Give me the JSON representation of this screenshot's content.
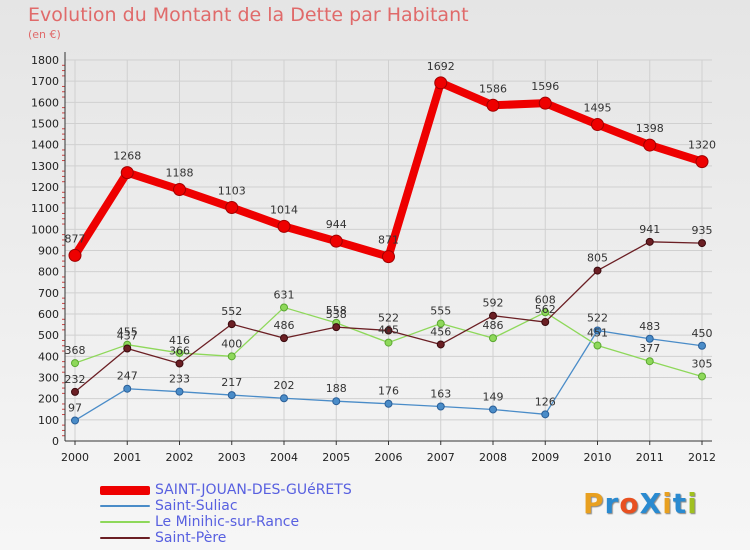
{
  "chart_data": {
    "type": "line",
    "title": "Evolution du Montant de la Dette par Habitant",
    "subtitle": "(en €)",
    "x": [
      "2000",
      "2001",
      "2002",
      "2003",
      "2004",
      "2005",
      "2006",
      "2007",
      "2008",
      "2009",
      "2010",
      "2011",
      "2012"
    ],
    "ylim": [
      0,
      1800
    ],
    "yticks": [
      0,
      100,
      200,
      300,
      400,
      500,
      600,
      700,
      800,
      900,
      1000,
      1100,
      1200,
      1300,
      1400,
      1500,
      1600,
      1700,
      1800
    ],
    "grid": true,
    "legend_position": "bottom-left",
    "series": [
      {
        "name": "SAINT-JOUAN-DES-GUéRETS",
        "color": "#ee0000",
        "values": [
          877,
          1268,
          1188,
          1103,
          1014,
          944,
          871,
          1692,
          1586,
          1596,
          1495,
          1398,
          1320
        ]
      },
      {
        "name": "Saint-Suliac",
        "color": "#4a8cc8",
        "values": [
          97,
          247,
          233,
          217,
          202,
          188,
          176,
          163,
          149,
          126,
          522,
          483,
          450
        ]
      },
      {
        "name": "Le Minihic-sur-Rance",
        "color": "#8ed85a",
        "values": [
          368,
          455,
          416,
          400,
          631,
          558,
          465,
          555,
          486,
          608,
          451,
          377,
          305
        ]
      },
      {
        "name": "Saint-Père",
        "color": "#6b1f24",
        "values": [
          232,
          437,
          366,
          552,
          486,
          538,
          522,
          456,
          592,
          562,
          805,
          941,
          935
        ]
      }
    ]
  },
  "logo": {
    "text": "ProXiti",
    "colors": [
      "#e8a020",
      "#2a8ad0",
      "#e85020",
      "#2a8ad0",
      "#e8a020",
      "#2a8ad0",
      "#a0c020"
    ]
  }
}
